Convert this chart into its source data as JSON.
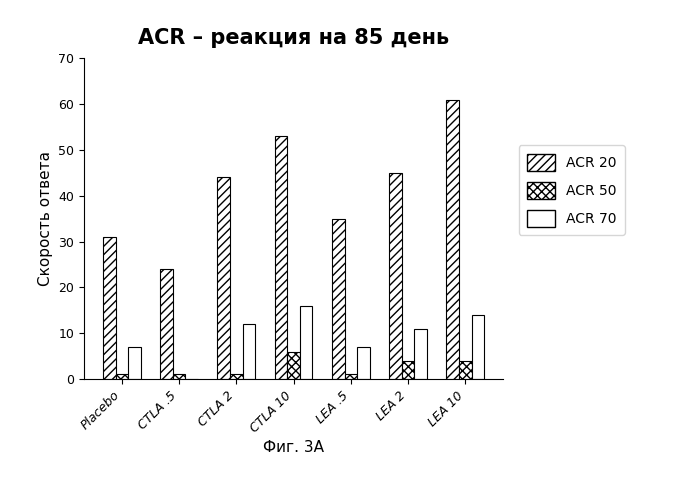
{
  "title": "ACR – реакция на 85 день",
  "xlabel": "Фиг. 3А",
  "ylabel": "Скорость ответа",
  "categories": [
    "Placebo",
    "CTLA .5",
    "CTLA 2",
    "CTLA 10",
    "LEA .5",
    "LEA 2",
    "LEA 10"
  ],
  "acr20": [
    31,
    24,
    44,
    53,
    35,
    45,
    61
  ],
  "acr50": [
    1,
    1,
    1,
    6,
    1,
    4,
    4
  ],
  "acr70": [
    7,
    0,
    12,
    16,
    7,
    11,
    14
  ],
  "ylim": [
    0,
    70
  ],
  "yticks": [
    0,
    10,
    20,
    30,
    40,
    50,
    60,
    70
  ],
  "legend_labels": [
    "ACR 20",
    "ACR 50",
    "ACR 70"
  ],
  "bar_width": 0.22,
  "hatch_acr20": "////",
  "hatch_acr50": "xxxx",
  "hatch_acr70": "",
  "facecolor_acr20": "white",
  "facecolor_acr50": "white",
  "facecolor_acr70": "white",
  "edgecolor": "black",
  "title_fontsize": 15,
  "tick_label_fontsize": 9,
  "axis_label_fontsize": 11,
  "legend_fontsize": 10
}
